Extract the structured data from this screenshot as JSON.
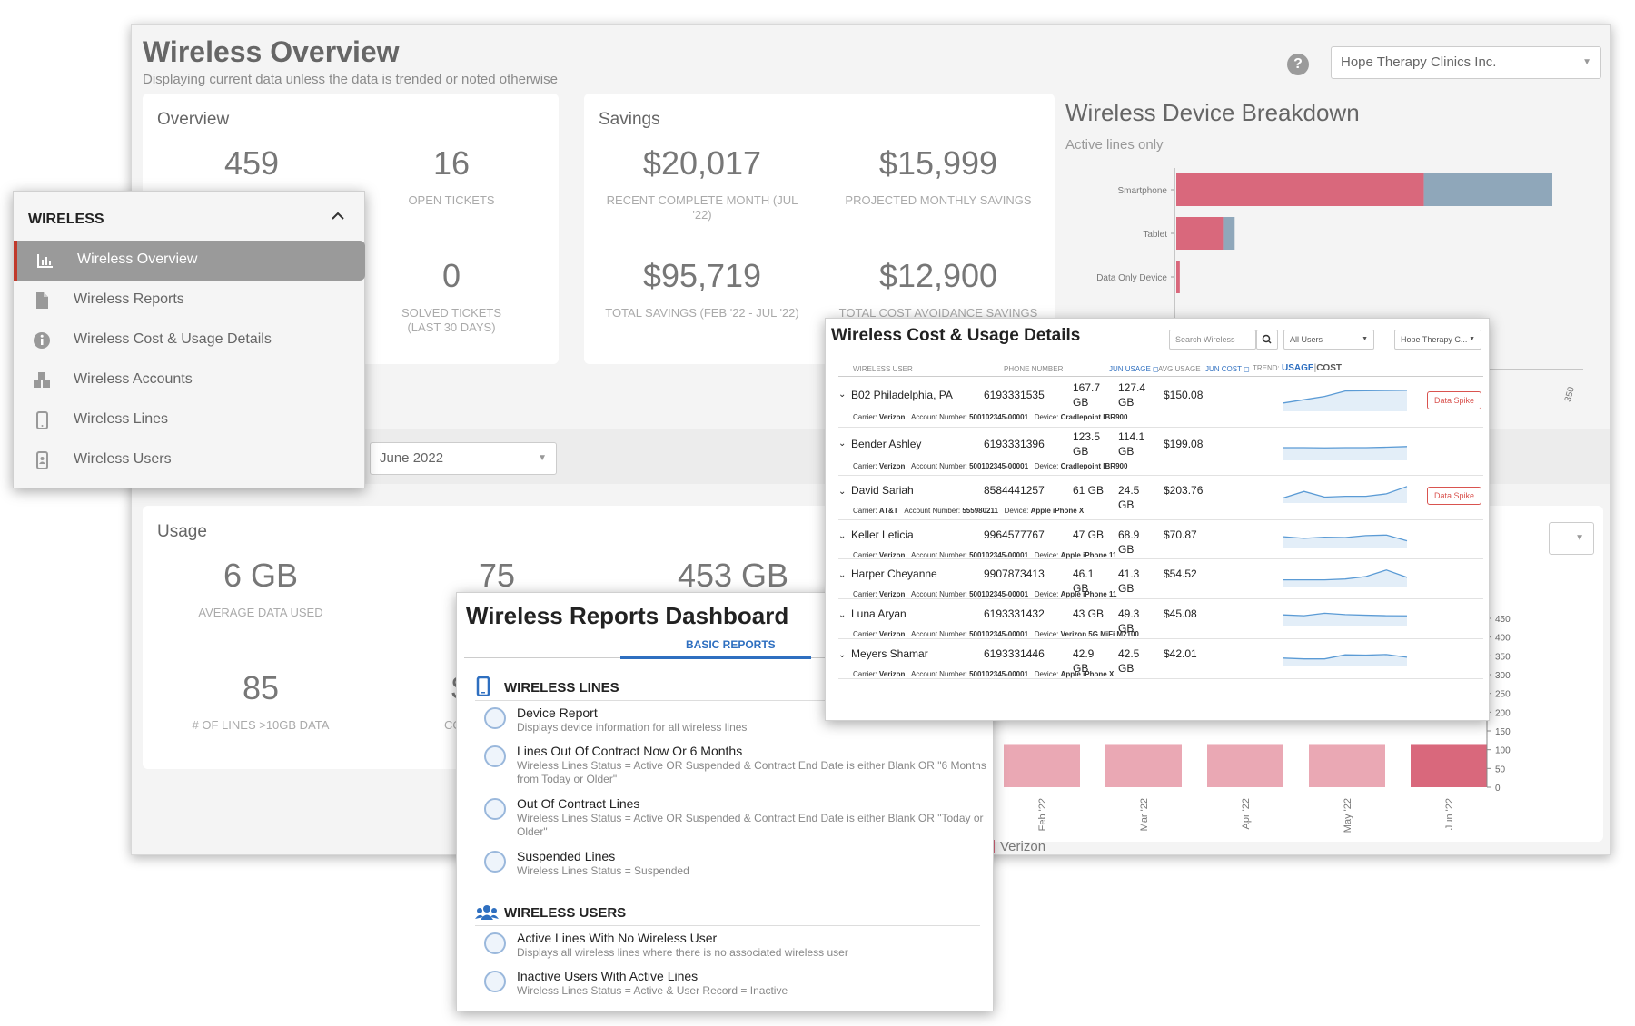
{
  "overview_page": {
    "title": "Wireless Overview",
    "subtitle": "Displaying current data unless the data is trended or noted otherwise",
    "help_icon": "help-circle-icon",
    "company_select": "Hope Therapy Clinics Inc.",
    "month_select": "June 2022",
    "carrier_legend": "Verizon",
    "overview": {
      "title": "Overview",
      "stats": [
        {
          "value": "459",
          "label": ""
        },
        {
          "value": "16",
          "label": "OPEN TICKETS"
        },
        {
          "value": "0",
          "label": "SOLVED TICKETS (LAST 30 DAYS)"
        }
      ]
    },
    "savings": {
      "title": "Savings",
      "stats": [
        {
          "value": "$20,017",
          "label": "RECENT COMPLETE MONTH (JUL '22)"
        },
        {
          "value": "$15,999",
          "label": "PROJECTED MONTHLY SAVINGS"
        },
        {
          "value": "$95,719",
          "label": "TOTAL SAVINGS (FEB '22 - JUL '22)"
        },
        {
          "value": "$12,900",
          "label": "TOTAL COST AVOIDANCE SAVINGS"
        }
      ]
    },
    "usage": {
      "title": "Usage",
      "stats": [
        {
          "value": "6 GB",
          "label": "AVERAGE DATA USED"
        },
        {
          "value": "75",
          "label": ""
        },
        {
          "value": "453 GB",
          "label": ""
        },
        {
          "value": "85",
          "label": "# OF LINES >10GB DATA"
        },
        {
          "value": "$",
          "label": "COST"
        }
      ]
    },
    "device_breakdown": {
      "title": "Wireless Device Breakdown",
      "subtitle": "Active lines only"
    }
  },
  "chart_data": [
    {
      "type": "bar",
      "orientation": "horizontal",
      "title": "Wireless Device Breakdown",
      "subtitle": "Active lines only",
      "categories": [
        "Smartphone",
        "Tablet",
        "Data Only Device"
      ],
      "series": [
        {
          "color": "#d9687c",
          "values": [
            212,
            40,
            3
          ]
        },
        {
          "color": "#8fa7ba",
          "values": [
            110,
            10,
            0
          ]
        }
      ],
      "visible_tick_labels": [
        "350"
      ],
      "xlim": [
        0,
        350
      ]
    },
    {
      "type": "bar",
      "categories": [
        "Feb '22",
        "Mar '22",
        "Apr '22",
        "May '22",
        "Jun '22"
      ],
      "values": [
        115,
        115,
        115,
        115,
        115
      ],
      "ylim": [
        0,
        450
      ],
      "yticks": [
        0,
        50,
        100,
        150,
        200,
        250,
        300,
        350,
        400,
        450
      ],
      "legend": [
        "Verizon"
      ],
      "colors": [
        "#eaa8b4",
        "#eaa8b4",
        "#eaa8b4",
        "#eaa8b4",
        "#d9687c"
      ]
    }
  ],
  "menu": {
    "header": "WIRELESS",
    "collapse_icon": "chevron-up-icon",
    "items": [
      {
        "label": "Wireless Overview",
        "icon": "bar-chart-icon",
        "active": true
      },
      {
        "label": "Wireless Reports",
        "icon": "document-icon"
      },
      {
        "label": "Wireless Cost & Usage Details",
        "icon": "info-icon"
      },
      {
        "label": "Wireless Accounts",
        "icon": "cubes-icon"
      },
      {
        "label": "Wireless Lines",
        "icon": "phone-icon"
      },
      {
        "label": "Wireless Users",
        "icon": "user-phone-icon"
      }
    ]
  },
  "reports": {
    "title": "Wireless Reports Dashboard",
    "tab": "BASIC REPORTS",
    "sections": [
      {
        "title": "WIRELESS LINES",
        "icon": "mobile-phone-icon",
        "items": [
          {
            "name": "Device Report",
            "desc": "Displays device information for all wireless lines"
          },
          {
            "name": "Lines Out Of Contract Now Or 6 Months",
            "desc": "Wireless Lines Status = Active OR Suspended & Contract End Date is either Blank OR \"6 Months from Today or Older\""
          },
          {
            "name": "Out Of Contract Lines",
            "desc": "Wireless Lines Status = Active OR Suspended & Contract End Date is either Blank OR \"Today or Older\""
          },
          {
            "name": "Suspended Lines",
            "desc": "Wireless Lines Status = Suspended"
          }
        ]
      },
      {
        "title": "WIRELESS USERS",
        "icon": "users-icon",
        "items": [
          {
            "name": "Active Lines With No Wireless User",
            "desc": "Displays all wireless lines where there is no associated wireless user"
          },
          {
            "name": "Inactive Users With Active Lines",
            "desc": "Wireless Lines Status = Active & User Record = Inactive"
          }
        ]
      }
    ]
  },
  "cost_usage": {
    "title": "Wireless Cost & Usage Details",
    "search_placeholder": "Search Wireless",
    "users_select": "All Users",
    "company_select": "Hope Therapy C...",
    "columns": {
      "user": "WIRELESS USER",
      "phone": "PHONE NUMBER",
      "jun_usage": "JUN USAGE",
      "avg_usage": "AVG USAGE",
      "jun_cost": "JUN COST",
      "trend": "TREND:",
      "trend_usage": "USAGE",
      "trend_sep": "|",
      "trend_cost": "COST"
    },
    "sub_labels": {
      "carrier": "Carrier:",
      "account": "Account Number:",
      "device": "Device:"
    },
    "rows": [
      {
        "user": "B02 Philadelphia, PA",
        "phone": "6193331535",
        "jun_usage": "167.7 GB",
        "avg_usage": "127.4 GB",
        "jun_cost": "$150.08",
        "carrier": "Verizon",
        "account": "500102345-00001",
        "device": "Cradlepoint IBR900",
        "spike": "Data Spike",
        "trend": [
          0.3,
          0.45,
          0.6,
          0.85,
          0.86,
          0.87,
          0.88
        ]
      },
      {
        "user": "Bender Ashley",
        "phone": "6193331396",
        "jun_usage": "123.5 GB",
        "avg_usage": "114.1 GB",
        "jun_cost": "$199.08",
        "carrier": "Verizon",
        "account": "500102345-00001",
        "device": "Cradlepoint IBR900",
        "spike": "",
        "trend": [
          0.5,
          0.5,
          0.49,
          0.5,
          0.5,
          0.52,
          0.55
        ]
      },
      {
        "user": "David Sariah",
        "phone": "8584441257",
        "jun_usage": "61 GB",
        "avg_usage": "24.5 GB",
        "jun_cost": "$203.76",
        "carrier": "AT&T",
        "account": "555980211",
        "device": "Apple iPhone X",
        "spike": "Data Spike",
        "trend": [
          0.2,
          0.6,
          0.25,
          0.3,
          0.3,
          0.45,
          0.9
        ]
      },
      {
        "user": "Keller Leticia",
        "phone": "9964577767",
        "jun_usage": "47 GB",
        "avg_usage": "68.9 GB",
        "jun_cost": "$70.87",
        "carrier": "Verizon",
        "account": "500102345-00001",
        "device": "Apple iPhone 11",
        "spike": "",
        "trend": [
          0.55,
          0.45,
          0.52,
          0.5,
          0.62,
          0.65,
          0.3
        ]
      },
      {
        "user": "Harper Cheyanne",
        "phone": "9907873413",
        "jun_usage": "46.1 GB",
        "avg_usage": "41.3 GB",
        "jun_cost": "$54.52",
        "carrier": "Verizon",
        "account": "500102345-00001",
        "device": "Apple iPhone 11",
        "spike": "",
        "trend": [
          0.3,
          0.3,
          0.3,
          0.35,
          0.5,
          0.9,
          0.45
        ]
      },
      {
        "user": "Luna Aryan",
        "phone": "6193331432",
        "jun_usage": "43 GB",
        "avg_usage": "49.3 GB",
        "jun_cost": "$45.08",
        "carrier": "Verizon",
        "account": "500102345-00001",
        "device": "Verizon 5G MiFi M2100",
        "spike": "",
        "trend": [
          0.6,
          0.55,
          0.7,
          0.62,
          0.58,
          0.55,
          0.54
        ]
      },
      {
        "user": "Meyers Shamar",
        "phone": "6193331446",
        "jun_usage": "42.9 GB",
        "avg_usage": "42.5 GB",
        "jun_cost": "$42.01",
        "carrier": "Verizon",
        "account": "500102345-00001",
        "device": "Apple iPhone X",
        "spike": "",
        "trend": [
          0.4,
          0.35,
          0.35,
          0.6,
          0.58,
          0.62,
          0.45
        ]
      }
    ]
  }
}
